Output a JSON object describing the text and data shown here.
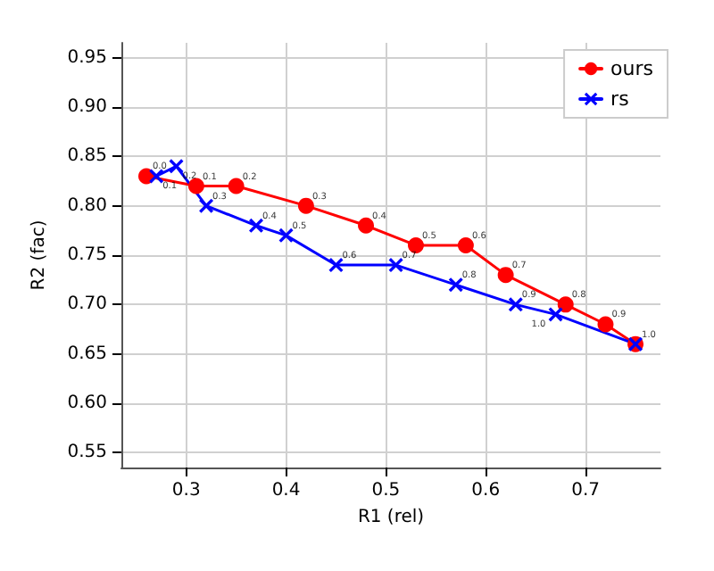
{
  "chart_data": {
    "type": "line",
    "xlabel": "R1 (rel)",
    "ylabel": "R2 (fac)",
    "xlim": [
      0.235,
      0.775
    ],
    "ylim": [
      0.535,
      0.965
    ],
    "xticks": [
      0.3,
      0.4,
      0.5,
      0.6,
      0.7
    ],
    "yticks": [
      {
        "value": 0.55,
        "label": "0.55"
      },
      {
        "value": 0.6,
        "label": "0.60"
      },
      {
        "value": 0.65,
        "label": "0.65"
      },
      {
        "value": 0.7,
        "label": "0.70"
      },
      {
        "value": 0.75,
        "label": "0.75"
      },
      {
        "value": 0.8,
        "label": "0.80"
      },
      {
        "value": 0.85,
        "label": "0.85"
      },
      {
        "value": 0.9,
        "label": "0.90"
      },
      {
        "value": 0.95,
        "label": "0.95"
      }
    ],
    "grid": true,
    "legend": "top right",
    "line_style": "solid",
    "series": [
      {
        "name": "ours",
        "color": "#ff0000",
        "marker": "circle",
        "x": [
          0.26,
          0.31,
          0.35,
          0.42,
          0.48,
          0.53,
          0.58,
          0.62,
          0.68,
          0.72,
          0.75
        ],
        "values": [
          0.83,
          0.82,
          0.82,
          0.8,
          0.78,
          0.76,
          0.76,
          0.73,
          0.7,
          0.68,
          0.66
        ]
      },
      {
        "name": "rs",
        "color": "#0000ff",
        "marker": "cross",
        "x": [
          0.27,
          0.29,
          0.32,
          0.37,
          0.4,
          0.45,
          0.51,
          0.57,
          0.63,
          0.67,
          0.75
        ],
        "values": [
          0.83,
          0.84,
          0.8,
          0.78,
          0.77,
          0.74,
          0.74,
          0.72,
          0.7,
          0.69,
          0.66
        ]
      }
    ],
    "annotations": [
      {
        "text": "0.0",
        "x": 0.26,
        "y": 0.83
      },
      {
        "text": "0.1",
        "x": 0.31,
        "y": 0.82
      },
      {
        "text": "0.2",
        "x": 0.35,
        "y": 0.82
      },
      {
        "text": "0.3",
        "x": 0.42,
        "y": 0.8
      },
      {
        "text": "0.4",
        "x": 0.48,
        "y": 0.78
      },
      {
        "text": "0.5",
        "x": 0.53,
        "y": 0.76
      },
      {
        "text": "0.6",
        "x": 0.58,
        "y": 0.76
      },
      {
        "text": "0.7",
        "x": 0.62,
        "y": 0.73
      },
      {
        "text": "0.8",
        "x": 0.68,
        "y": 0.7
      },
      {
        "text": "0.9",
        "x": 0.72,
        "y": 0.68
      },
      {
        "text": "1.0",
        "x": 0.75,
        "y": 0.66
      },
      {
        "text": "0.1",
        "x": 0.27,
        "y": 0.83
      },
      {
        "text": "0.2",
        "x": 0.29,
        "y": 0.84
      },
      {
        "text": "0.3",
        "x": 0.32,
        "y": 0.8
      },
      {
        "text": "0.4",
        "x": 0.37,
        "y": 0.78
      },
      {
        "text": "0.5",
        "x": 0.4,
        "y": 0.77
      },
      {
        "text": "0.6",
        "x": 0.45,
        "y": 0.74
      },
      {
        "text": "0.7",
        "x": 0.51,
        "y": 0.74
      },
      {
        "text": "0.8",
        "x": 0.57,
        "y": 0.72
      },
      {
        "text": "0.9",
        "x": 0.63,
        "y": 0.7
      },
      {
        "text": "1.0",
        "x": 0.67,
        "y": 0.69
      }
    ]
  }
}
